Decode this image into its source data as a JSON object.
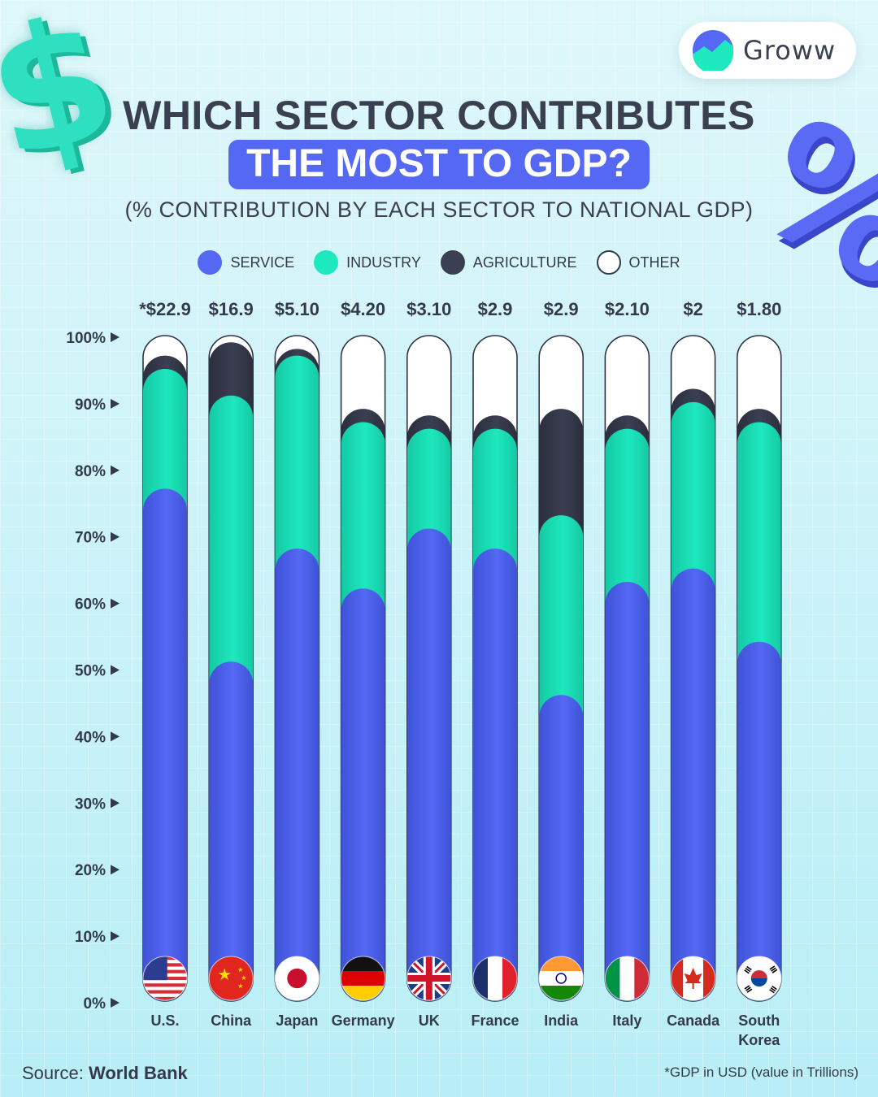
{
  "brand": {
    "name": "Groww"
  },
  "title_line1": "WHICH SECTOR CONTRIBUTES",
  "title_line2": "THE MOST TO GDP?",
  "subtitle": "(% CONTRIBUTION BY EACH SECTOR TO NATIONAL GDP)",
  "decorations": {
    "left_icon": "dollar-sign-3d",
    "right_icon": "percent-sign-3d"
  },
  "colors": {
    "service": "#5468f4",
    "industry": "#1ee8be",
    "agriculture": "#3b3f52",
    "other": "#ffffff",
    "title_badge": "#5468f4"
  },
  "source_prefix": "Source:",
  "source_name": "World Bank",
  "footnote": "*GDP in USD (value in Trillions)",
  "chart_data": {
    "type": "bar",
    "stacked": true,
    "yaxis_ticks": [
      "0%",
      "10%",
      "20%",
      "30%",
      "40%",
      "50%",
      "60%",
      "70%",
      "80%",
      "90%",
      "100%"
    ],
    "ylim": [
      0,
      100
    ],
    "legend_position": "top",
    "categories": [
      {
        "name": "U.S.",
        "gdp": "*$22.9",
        "flag": "us-flag"
      },
      {
        "name": "China",
        "gdp": "$16.9",
        "flag": "china-flag"
      },
      {
        "name": "Japan",
        "gdp": "$5.10",
        "flag": "japan-flag"
      },
      {
        "name": "Germany",
        "gdp": "$4.20",
        "flag": "germany-flag"
      },
      {
        "name": "UK",
        "gdp": "$3.10",
        "flag": "uk-flag"
      },
      {
        "name": "France",
        "gdp": "$2.9",
        "flag": "france-flag"
      },
      {
        "name": "India",
        "gdp": "$2.9",
        "flag": "india-flag"
      },
      {
        "name": "Italy",
        "gdp": "$2.10",
        "flag": "italy-flag"
      },
      {
        "name": "Canada",
        "gdp": "$2",
        "flag": "canada-flag"
      },
      {
        "name": "South Korea",
        "gdp": "$1.80",
        "flag": "south-korea-flag"
      }
    ],
    "series": [
      {
        "name": "SERVICE",
        "color_key": "service",
        "values": [
          77,
          51,
          68,
          62,
          71,
          68,
          46,
          63,
          65,
          54
        ]
      },
      {
        "name": "INDUSTRY",
        "color_key": "industry",
        "values": [
          18,
          40,
          29,
          25,
          15,
          18,
          27,
          23,
          25,
          33
        ]
      },
      {
        "name": "AGRICULTURE",
        "color_key": "agriculture",
        "values": [
          2,
          8,
          1,
          2,
          2,
          2,
          16,
          2,
          2,
          2
        ]
      },
      {
        "name": "OTHER",
        "color_key": "other",
        "values": [
          3,
          1,
          2,
          11,
          12,
          12,
          11,
          12,
          8,
          11
        ]
      }
    ]
  }
}
